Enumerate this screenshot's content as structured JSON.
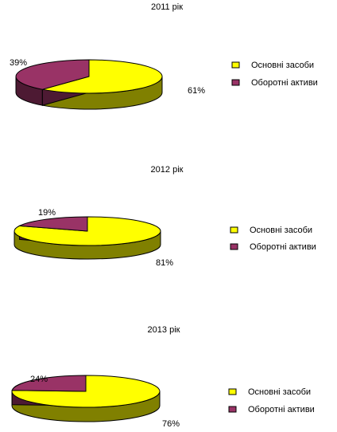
{
  "colors": {
    "fixed_top": "#ffff00",
    "fixed_side": "#808000",
    "current_top": "#993366",
    "current_side": "#4d1a33",
    "outline": "#000000"
  },
  "chart_data": [
    {
      "type": "pie",
      "title": "2011 рік",
      "legend_position": "right",
      "categories": [
        "Основні засоби",
        "Оборотні активи"
      ],
      "values": [
        61,
        39
      ],
      "labels": [
        "61%",
        "39%"
      ]
    },
    {
      "type": "pie",
      "title": "2012 рік",
      "legend_position": "right",
      "categories": [
        "Основні засоби",
        "Оборотні активи"
      ],
      "values": [
        81,
        19
      ],
      "labels": [
        "81%",
        "19%"
      ]
    },
    {
      "type": "pie",
      "title": "2013 рік",
      "legend_position": "right",
      "categories": [
        "Основні засоби",
        "Оборотні активи"
      ],
      "values": [
        76,
        24
      ],
      "labels": [
        "76%",
        "24%"
      ]
    }
  ]
}
